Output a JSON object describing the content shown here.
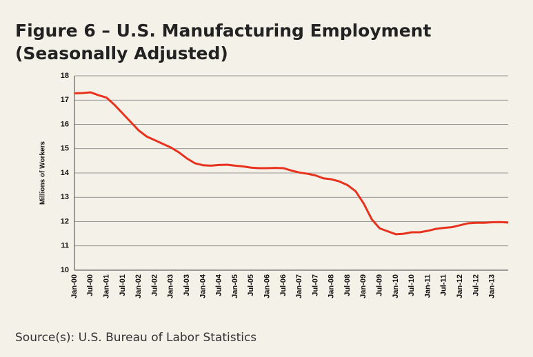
{
  "chart_data": {
    "type": "line",
    "title": "Figure 6 – U.S. Manufacturing Employment (Seasonally Adjusted)",
    "y_label": "Millions of Workers",
    "source": "Source(s): U.S. Bureau of Labor Statistics",
    "categories": [
      "Jan-00",
      null,
      "Jul-00",
      null,
      "Jan-01",
      null,
      "Jul-01",
      null,
      "Jan-02",
      null,
      "Jul-02",
      null,
      "Jan-03",
      null,
      "Jul-03",
      null,
      "Jan-04",
      null,
      "Jul-04",
      null,
      "Jan-05",
      null,
      "Jul-05",
      null,
      "Jan-06",
      null,
      "Jul-06",
      null,
      "Jan-07",
      null,
      "Jul-07",
      null,
      "Jan-08",
      null,
      "Jul-08",
      null,
      "Jan-09",
      null,
      "Jul-09",
      null,
      "Jan-10",
      null,
      "Jul-10",
      null,
      "Jan-11",
      null,
      "Jul-11",
      null,
      "Jan-12",
      null,
      "Jul-12",
      null,
      "Jan-13",
      null,
      null
    ],
    "values": [
      17.28,
      17.29,
      17.32,
      17.2,
      17.1,
      16.8,
      16.45,
      16.1,
      15.75,
      15.5,
      15.35,
      15.2,
      15.05,
      14.85,
      14.6,
      14.4,
      14.32,
      14.3,
      14.33,
      14.34,
      14.3,
      14.27,
      14.22,
      14.2,
      14.2,
      14.21,
      14.2,
      14.1,
      14.02,
      13.97,
      13.9,
      13.78,
      13.74,
      13.65,
      13.5,
      13.25,
      12.75,
      12.1,
      11.72,
      11.6,
      11.48,
      11.5,
      11.56,
      11.56,
      11.62,
      11.7,
      11.74,
      11.77,
      11.85,
      11.93,
      11.95,
      11.95,
      11.97,
      11.98,
      11.96
    ],
    "color": "#e8321e",
    "ylim": [
      10,
      18
    ],
    "yticks": [
      10,
      11,
      12,
      13,
      14,
      15,
      16,
      17,
      18
    ],
    "grid": true
  }
}
